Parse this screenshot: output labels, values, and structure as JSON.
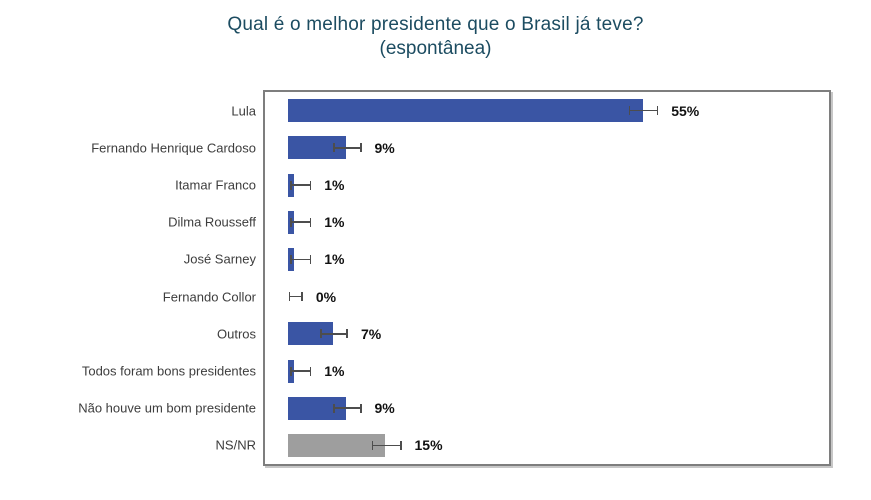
{
  "title": "Qual é o melhor presidente que o Brasil já teve?",
  "subtitle": "(espontânea)",
  "colors": {
    "title_text": "#1c4c61",
    "category_label": "#3d3d3d",
    "value_label": "#111111",
    "bar_blue": "#3a55a4",
    "bar_gray": "#9e9e9e",
    "error_bar": "#4d4d4d",
    "plot_border": "#7e7e7e",
    "background": "#ffffff"
  },
  "chart_data": {
    "type": "bar",
    "orientation": "horizontal",
    "title": "Qual é o melhor presidente que o Brasil já teve?",
    "subtitle": "(espontânea)",
    "xlabel": "",
    "ylabel": "",
    "xlim": [
      0,
      84
    ],
    "unit": "%",
    "grid": false,
    "legend": null,
    "rows": [
      {
        "label": "Lula",
        "value": 55,
        "display": "55%",
        "ci": [
          52.8,
          57.4
        ],
        "color": "#3a55a4"
      },
      {
        "label": "Fernando Henrique Cardoso",
        "value": 9,
        "display": "9%",
        "ci": [
          7.0,
          11.4
        ],
        "color": "#3a55a4"
      },
      {
        "label": "Itamar Franco",
        "value": 1,
        "display": "1%",
        "ci": [
          0.3,
          3.6
        ],
        "color": "#3a55a4"
      },
      {
        "label": "Dilma Rousseff",
        "value": 1,
        "display": "1%",
        "ci": [
          0.3,
          3.6
        ],
        "color": "#3a55a4"
      },
      {
        "label": "José Sarney",
        "value": 1,
        "display": "1%",
        "ci": [
          0.3,
          3.6
        ],
        "color": "#3a55a4"
      },
      {
        "label": "Fernando Collor",
        "value": 0,
        "display": "0%",
        "ci": [
          0.1,
          2.3
        ],
        "color": "#3a55a4"
      },
      {
        "label": "Outros",
        "value": 7,
        "display": "7%",
        "ci": [
          5.0,
          9.3
        ],
        "color": "#3a55a4"
      },
      {
        "label": "Todos foram bons presidentes",
        "value": 1,
        "display": "1%",
        "ci": [
          0.3,
          3.6
        ],
        "color": "#3a55a4"
      },
      {
        "label": "Não houve um bom presidente",
        "value": 9,
        "display": "9%",
        "ci": [
          7.0,
          11.4
        ],
        "color": "#3a55a4"
      },
      {
        "label": "NS/NR",
        "value": 15,
        "display": "15%",
        "ci": [
          13.0,
          17.6
        ],
        "color": "#9e9e9e"
      }
    ]
  }
}
